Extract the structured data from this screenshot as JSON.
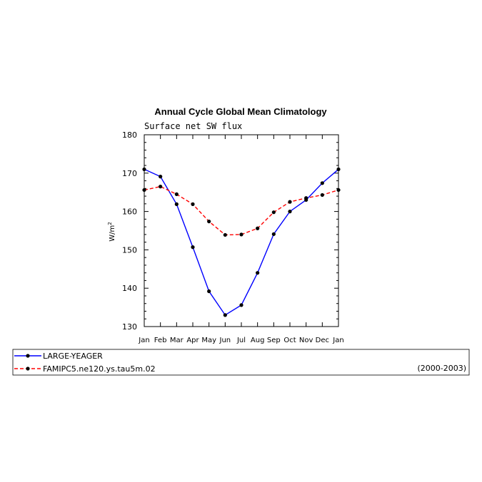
{
  "chart_data": {
    "type": "line",
    "title": "Annual Cycle Global Mean Climatology",
    "subtitle": "Surface net SW flux",
    "ylabel": "W/m",
    "ylabel_sup": "2",
    "categories": [
      "Jan",
      "Feb",
      "Mar",
      "Apr",
      "May",
      "Jun",
      "Jul",
      "Aug",
      "Sep",
      "Oct",
      "Nov",
      "Dec",
      "Jan"
    ],
    "ylim": [
      130,
      180
    ],
    "yticks": [
      130,
      140,
      150,
      160,
      170,
      180
    ],
    "series": [
      {
        "name": "LARGE-YEAGER",
        "color": "#0000ff",
        "style": "solid",
        "values": [
          171.0,
          169.1,
          161.9,
          150.7,
          139.2,
          133.0,
          135.6,
          144.0,
          154.1,
          160.0,
          163.0,
          167.4,
          171.0
        ]
      },
      {
        "name": "FAMIPC5.ne120.ys.tau5m.02",
        "color": "#ff0000",
        "style": "dashed",
        "values": [
          165.6,
          166.5,
          164.5,
          161.9,
          157.4,
          153.9,
          154.0,
          155.6,
          159.8,
          162.5,
          163.5,
          164.3,
          165.6
        ]
      }
    ],
    "legend_note": "(2000-2003)",
    "legend_position": "bottom",
    "grid": false
  }
}
